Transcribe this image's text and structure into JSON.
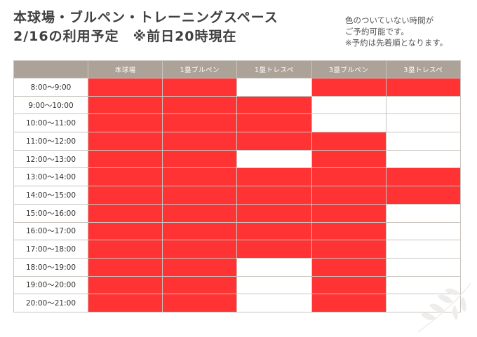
{
  "title": {
    "line1": "本球場・ブルペン・トレーニングスペース",
    "line2": "2/16の利用予定　※前日20時現在"
  },
  "note": {
    "line1": "色のついていない時間が",
    "line2": "ご予約可能です。",
    "line3": "※予約は先着順となります。"
  },
  "colors": {
    "booked": "#ff3333",
    "available": "#ffffff",
    "header": "#ada298"
  },
  "table": {
    "columns": [
      "本球場",
      "1塁ブルペン",
      "1塁トレスペ",
      "3塁ブルペン",
      "3塁トレスペ"
    ],
    "rows": [
      {
        "time": "8:00〜9:00",
        "booked": [
          true,
          true,
          false,
          true,
          true
        ]
      },
      {
        "time": "9:00〜10:00",
        "booked": [
          true,
          true,
          true,
          false,
          false
        ]
      },
      {
        "time": "10:00〜11:00",
        "booked": [
          true,
          true,
          true,
          false,
          false
        ]
      },
      {
        "time": "11:00〜12:00",
        "booked": [
          true,
          true,
          true,
          true,
          false
        ]
      },
      {
        "time": "12:00〜13:00",
        "booked": [
          true,
          true,
          false,
          true,
          false
        ]
      },
      {
        "time": "13:00〜14:00",
        "booked": [
          true,
          true,
          true,
          true,
          true
        ]
      },
      {
        "time": "14:00〜15:00",
        "booked": [
          true,
          true,
          true,
          true,
          true
        ]
      },
      {
        "time": "15:00〜16:00",
        "booked": [
          true,
          true,
          true,
          true,
          false
        ]
      },
      {
        "time": "16:00〜17:00",
        "booked": [
          true,
          true,
          true,
          true,
          false
        ]
      },
      {
        "time": "17:00〜18:00",
        "booked": [
          true,
          true,
          true,
          true,
          false
        ]
      },
      {
        "time": "18:00〜19:00",
        "booked": [
          true,
          true,
          false,
          true,
          false
        ]
      },
      {
        "time": "19:00〜20:00",
        "booked": [
          true,
          true,
          false,
          true,
          false
        ]
      },
      {
        "time": "20:00〜21:00",
        "booked": [
          true,
          true,
          false,
          true,
          false
        ]
      }
    ]
  },
  "decoration": {
    "icon": "leaf-branch-icon"
  }
}
